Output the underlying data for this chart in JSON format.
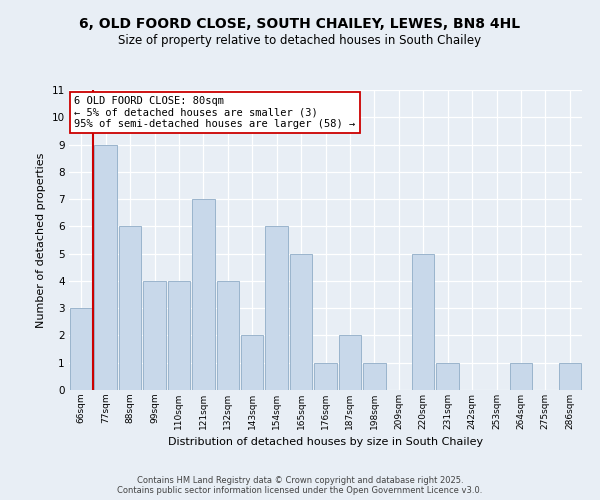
{
  "title": "6, OLD FOORD CLOSE, SOUTH CHAILEY, LEWES, BN8 4HL",
  "subtitle": "Size of property relative to detached houses in South Chailey",
  "xlabel": "Distribution of detached houses by size in South Chailey",
  "ylabel": "Number of detached properties",
  "bin_labels": [
    "66sqm",
    "77sqm",
    "88sqm",
    "99sqm",
    "110sqm",
    "121sqm",
    "132sqm",
    "143sqm",
    "154sqm",
    "165sqm",
    "176sqm",
    "187sqm",
    "198sqm",
    "209sqm",
    "220sqm",
    "231sqm",
    "242sqm",
    "253sqm",
    "264sqm",
    "275sqm",
    "286sqm"
  ],
  "bar_values": [
    3,
    9,
    6,
    4,
    4,
    7,
    4,
    2,
    6,
    5,
    1,
    2,
    1,
    0,
    5,
    1,
    0,
    0,
    1,
    0,
    1
  ],
  "bar_color": "#c8d8ea",
  "bar_edge_color": "#9ab4cc",
  "highlight_color": "#cc0000",
  "annotation_title": "6 OLD FOORD CLOSE: 80sqm",
  "annotation_line1": "← 5% of detached houses are smaller (3)",
  "annotation_line2": "95% of semi-detached houses are larger (58) →",
  "ylim": [
    0,
    11
  ],
  "yticks": [
    0,
    1,
    2,
    3,
    4,
    5,
    6,
    7,
    8,
    9,
    10,
    11
  ],
  "bg_color": "#e8eef5",
  "plot_bg_color": "#e8eef5",
  "footer1": "Contains HM Land Registry data © Crown copyright and database right 2025.",
  "footer2": "Contains public sector information licensed under the Open Government Licence v3.0."
}
